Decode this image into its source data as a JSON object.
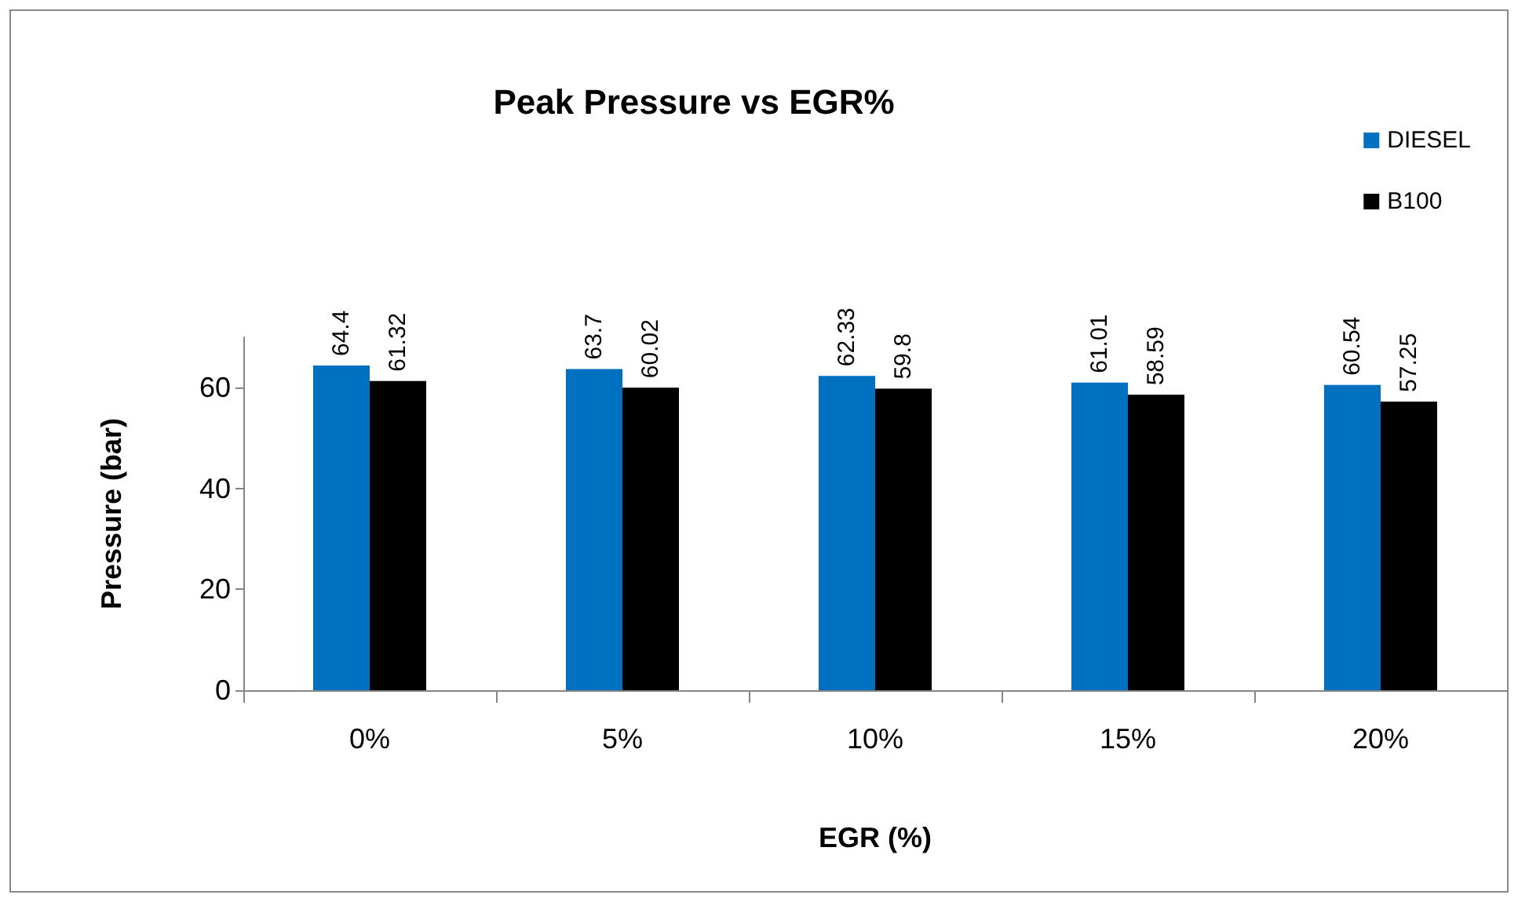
{
  "chart_data": {
    "type": "bar",
    "title": "Peak Pressure vs EGR%",
    "xlabel": "EGR (%)",
    "ylabel": "Pressure (bar)",
    "categories": [
      "0%",
      "5%",
      "10%",
      "15%",
      "20%"
    ],
    "series": [
      {
        "name": "DIESEL",
        "color": "#0070c0",
        "values": [
          64.4,
          63.7,
          62.33,
          61.01,
          60.54
        ]
      },
      {
        "name": "B100",
        "color": "#000000",
        "values": [
          61.32,
          60.02,
          59.8,
          58.59,
          57.25
        ]
      }
    ],
    "ylim": [
      0,
      70
    ],
    "yticks": [
      0,
      20,
      40,
      60
    ],
    "grid": false,
    "legend": "top right",
    "data_labels": true
  }
}
